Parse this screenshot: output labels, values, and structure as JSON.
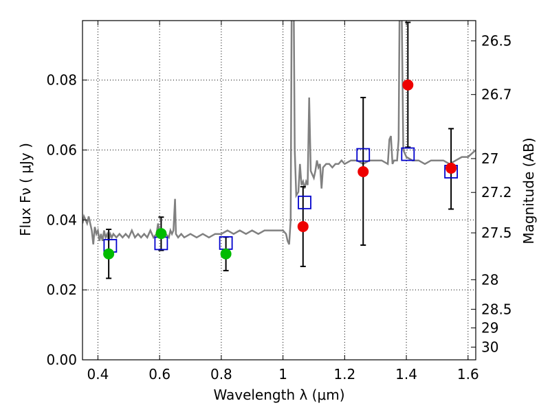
{
  "chart_data": {
    "type": "scatter",
    "xlabel": "Wavelength  λ (μm)",
    "ylabel": "Flux  Fν  ( μJy )",
    "ylabel_right": "Magnitude (AB)",
    "xlim": [
      0.35,
      1.625
    ],
    "ylim": [
      0.0,
      0.097
    ],
    "grid": true,
    "x_ticks": [
      {
        "value": 0.4,
        "label": "0.4"
      },
      {
        "value": 0.6,
        "label": "0.6"
      },
      {
        "value": 0.8,
        "label": "0.8"
      },
      {
        "value": 1.0,
        "label": "1"
      },
      {
        "value": 1.2,
        "label": "1.2"
      },
      {
        "value": 1.4,
        "label": "1.4"
      },
      {
        "value": 1.6,
        "label": "1.6"
      }
    ],
    "y_ticks": [
      {
        "value": 0.0,
        "label": "0.00"
      },
      {
        "value": 0.02,
        "label": "0.02"
      },
      {
        "value": 0.04,
        "label": "0.04"
      },
      {
        "value": 0.06,
        "label": "0.06"
      },
      {
        "value": 0.08,
        "label": "0.08"
      }
    ],
    "magnitude_ticks": [
      {
        "value": 26.5,
        "label": "26.5"
      },
      {
        "value": 26.7,
        "label": "26.7"
      },
      {
        "value": 27.0,
        "label": "27"
      },
      {
        "value": 27.2,
        "label": "27.2"
      },
      {
        "value": 27.5,
        "label": "27.5"
      },
      {
        "value": 28.0,
        "label": "28"
      },
      {
        "value": 28.5,
        "label": "28.5"
      },
      {
        "value": 29.0,
        "label": "29"
      },
      {
        "value": 30.0,
        "label": "30"
      }
    ],
    "magnitude_zero_point": 23.9,
    "colors": {
      "spectrum": "#808080",
      "model": "#0000cc",
      "green_points": "#00bb00",
      "red_points": "#ee0000",
      "errorbars": "#000000"
    },
    "spectrum": [
      [
        0.35,
        0.039
      ],
      [
        0.355,
        0.041
      ],
      [
        0.36,
        0.04
      ],
      [
        0.365,
        0.039
      ],
      [
        0.37,
        0.041
      ],
      [
        0.375,
        0.039
      ],
      [
        0.38,
        0.037
      ],
      [
        0.385,
        0.033
      ],
      [
        0.39,
        0.038
      ],
      [
        0.395,
        0.036
      ],
      [
        0.4,
        0.037
      ],
      [
        0.405,
        0.034
      ],
      [
        0.41,
        0.036
      ],
      [
        0.415,
        0.034
      ],
      [
        0.42,
        0.037
      ],
      [
        0.425,
        0.035
      ],
      [
        0.43,
        0.036
      ],
      [
        0.435,
        0.034
      ],
      [
        0.44,
        0.036
      ],
      [
        0.445,
        0.035
      ],
      [
        0.45,
        0.036
      ],
      [
        0.46,
        0.035
      ],
      [
        0.47,
        0.036
      ],
      [
        0.48,
        0.035
      ],
      [
        0.49,
        0.036
      ],
      [
        0.5,
        0.035
      ],
      [
        0.51,
        0.037
      ],
      [
        0.52,
        0.035
      ],
      [
        0.53,
        0.036
      ],
      [
        0.54,
        0.035
      ],
      [
        0.55,
        0.036
      ],
      [
        0.56,
        0.035
      ],
      [
        0.57,
        0.037
      ],
      [
        0.58,
        0.035
      ],
      [
        0.59,
        0.036
      ],
      [
        0.595,
        0.039
      ],
      [
        0.6,
        0.036
      ],
      [
        0.61,
        0.035
      ],
      [
        0.62,
        0.036
      ],
      [
        0.63,
        0.035
      ],
      [
        0.635,
        0.037
      ],
      [
        0.64,
        0.036
      ],
      [
        0.645,
        0.037
      ],
      [
        0.65,
        0.046
      ],
      [
        0.653,
        0.036
      ],
      [
        0.66,
        0.035
      ],
      [
        0.67,
        0.036
      ],
      [
        0.68,
        0.035
      ],
      [
        0.7,
        0.036
      ],
      [
        0.72,
        0.035
      ],
      [
        0.74,
        0.036
      ],
      [
        0.76,
        0.035
      ],
      [
        0.78,
        0.036
      ],
      [
        0.8,
        0.036
      ],
      [
        0.82,
        0.037
      ],
      [
        0.84,
        0.036
      ],
      [
        0.86,
        0.037
      ],
      [
        0.88,
        0.036
      ],
      [
        0.9,
        0.037
      ],
      [
        0.92,
        0.036
      ],
      [
        0.94,
        0.037
      ],
      [
        0.96,
        0.037
      ],
      [
        0.98,
        0.037
      ],
      [
        1.0,
        0.037
      ],
      [
        1.01,
        0.036
      ],
      [
        1.015,
        0.034
      ],
      [
        1.02,
        0.033
      ],
      [
        1.025,
        0.04
      ],
      [
        1.028,
        0.1
      ],
      [
        1.035,
        0.1
      ],
      [
        1.038,
        0.06
      ],
      [
        1.043,
        0.047
      ],
      [
        1.05,
        0.048
      ],
      [
        1.055,
        0.056
      ],
      [
        1.06,
        0.05
      ],
      [
        1.065,
        0.051
      ],
      [
        1.07,
        0.049
      ],
      [
        1.075,
        0.051
      ],
      [
        1.08,
        0.05
      ],
      [
        1.085,
        0.075
      ],
      [
        1.09,
        0.054
      ],
      [
        1.095,
        0.053
      ],
      [
        1.1,
        0.052
      ],
      [
        1.105,
        0.054
      ],
      [
        1.11,
        0.057
      ],
      [
        1.115,
        0.055
      ],
      [
        1.12,
        0.056
      ],
      [
        1.125,
        0.049
      ],
      [
        1.13,
        0.055
      ],
      [
        1.14,
        0.056
      ],
      [
        1.15,
        0.056
      ],
      [
        1.16,
        0.055
      ],
      [
        1.17,
        0.056
      ],
      [
        1.18,
        0.056
      ],
      [
        1.19,
        0.057
      ],
      [
        1.2,
        0.056
      ],
      [
        1.22,
        0.057
      ],
      [
        1.24,
        0.057
      ],
      [
        1.26,
        0.056
      ],
      [
        1.28,
        0.057
      ],
      [
        1.3,
        0.057
      ],
      [
        1.32,
        0.057
      ],
      [
        1.34,
        0.056
      ],
      [
        1.345,
        0.063
      ],
      [
        1.35,
        0.064
      ],
      [
        1.355,
        0.056
      ],
      [
        1.36,
        0.057
      ],
      [
        1.37,
        0.057
      ],
      [
        1.375,
        0.063
      ],
      [
        1.378,
        0.1
      ],
      [
        1.385,
        0.1
      ],
      [
        1.39,
        0.06
      ],
      [
        1.4,
        0.058
      ],
      [
        1.42,
        0.057
      ],
      [
        1.44,
        0.057
      ],
      [
        1.46,
        0.056
      ],
      [
        1.48,
        0.057
      ],
      [
        1.5,
        0.057
      ],
      [
        1.52,
        0.057
      ],
      [
        1.54,
        0.056
      ],
      [
        1.56,
        0.057
      ],
      [
        1.58,
        0.058
      ],
      [
        1.6,
        0.058
      ],
      [
        1.625,
        0.06
      ]
    ],
    "model_points": [
      {
        "x": 0.44,
        "y": 0.0326
      },
      {
        "x": 0.605,
        "y": 0.0333
      },
      {
        "x": 0.815,
        "y": 0.0334
      },
      {
        "x": 1.07,
        "y": 0.045
      },
      {
        "x": 1.26,
        "y": 0.0586
      },
      {
        "x": 1.405,
        "y": 0.0588
      },
      {
        "x": 1.545,
        "y": 0.0538
      }
    ],
    "observed_points": [
      {
        "x": 0.435,
        "y": 0.0303,
        "yerr_low": 0.0233,
        "yerr_high": 0.0373,
        "color": "green"
      },
      {
        "x": 0.605,
        "y": 0.0361,
        "yerr_low": 0.0313,
        "yerr_high": 0.0408,
        "color": "green"
      },
      {
        "x": 0.815,
        "y": 0.0303,
        "yerr_low": 0.0255,
        "yerr_high": 0.0351,
        "color": "green"
      },
      {
        "x": 1.065,
        "y": 0.0381,
        "yerr_low": 0.0267,
        "yerr_high": 0.0495,
        "color": "red"
      },
      {
        "x": 1.26,
        "y": 0.0538,
        "yerr_low": 0.0328,
        "yerr_high": 0.075,
        "color": "red"
      },
      {
        "x": 1.405,
        "y": 0.0786,
        "yerr_low": 0.0608,
        "yerr_high": 0.0965,
        "color": "red"
      },
      {
        "x": 1.545,
        "y": 0.0548,
        "yerr_low": 0.0431,
        "yerr_high": 0.0661,
        "color": "red"
      }
    ]
  }
}
